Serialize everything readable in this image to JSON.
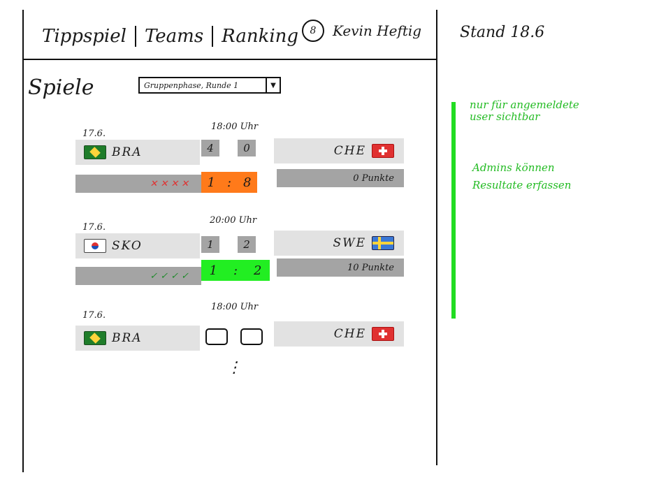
{
  "nav": {
    "items": [
      "Tippspiel",
      "Teams",
      "Ranking"
    ]
  },
  "user": {
    "avatar_glyph": "8",
    "name": "Kevin Heftig"
  },
  "stand": "Stand 18.6",
  "section": {
    "title": "Spiele",
    "select_value": "Gruppenphase, Runde 1",
    "select_arrow": "▼"
  },
  "matches": [
    {
      "date": "17.6.",
      "time": "18:00 Uhr",
      "home": "BRA",
      "away": "CHE",
      "tip_home": "4",
      "tip_away": "0",
      "res_home": "1",
      "res_sep": ":",
      "res_away": "8",
      "marks": "✕✕✕✕",
      "points": "0 Punkte",
      "result_color": "#ff7a1a",
      "marks_color": "#e03131"
    },
    {
      "date": "17.6.",
      "time": "20:00 Uhr",
      "home": "SKO",
      "away": "SWE",
      "tip_home": "1",
      "tip_away": "2",
      "res_home": "1",
      "res_sep": ":",
      "res_away": "2",
      "marks": "✓✓✓✓",
      "points": "10 Punkte",
      "result_color": "#22ee22",
      "marks_color": "#1d8a2a"
    },
    {
      "date": "17.6.",
      "time": "18:00 Uhr",
      "home": "BRA",
      "away": "CHE"
    }
  ],
  "more": "⋮",
  "notes": {
    "line1a": "nur für angemeldete",
    "line1b": "user sichtbar",
    "line2a": "Admins können",
    "line2b": "Resultate erfassen"
  },
  "colors": {
    "note_green": "#22dd22",
    "box_light": "#e2e2e2",
    "box_dark": "#a4a4a4"
  }
}
